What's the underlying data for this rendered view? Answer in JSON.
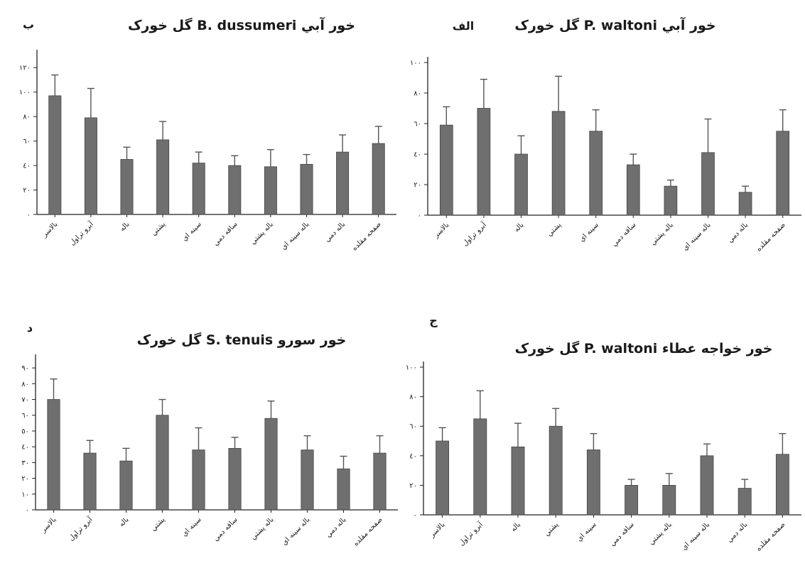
{
  "chart_data": [
    {
      "type": "bar",
      "panel": "panel-b",
      "letter": "ب",
      "title": "گل خورک B. dussumeri خور آبي",
      "categories": [
        "بالاسر",
        "آبرو تراول",
        "باله",
        "پشتي",
        "سينه اي",
        "ساقه دمي",
        "باله پشتي",
        "باله سينه اي",
        "باله دمي",
        "صفحه مقلده"
      ],
      "values": [
        97,
        79,
        45,
        61,
        42,
        40,
        39,
        41,
        51,
        58
      ],
      "errors": [
        17,
        24,
        10,
        15,
        9,
        8,
        14,
        8,
        14,
        14
      ],
      "ylim": [
        0,
        130
      ],
      "yticks": [
        0,
        20,
        40,
        60,
        80,
        100,
        120
      ],
      "ytick_labels": [
        "٠",
        "٢٠",
        "٤٠",
        "٦٠",
        "٨٠",
        "١٠٠",
        "١٢٠"
      ],
      "bar_color": "#6f6f6f",
      "grid": false
    },
    {
      "type": "bar",
      "panel": "panel-alef",
      "letter": "الف",
      "title": "گل خورک P. waltoni خور آبي",
      "categories": [
        "بالاسر",
        "آبرو تراول",
        "باله",
        "پشتي",
        "سينه اي",
        "ساقه دمي",
        "باله پشتي",
        "باله سينه اي",
        "باله دمي",
        "صفحه مقلده"
      ],
      "values": [
        59,
        70,
        40,
        68,
        55,
        33,
        19,
        41,
        15,
        55
      ],
      "errors": [
        12,
        19,
        12,
        23,
        14,
        7,
        4,
        22,
        4,
        14
      ],
      "ylim": [
        0,
        100
      ],
      "yticks": [
        0,
        20,
        40,
        60,
        80,
        100
      ],
      "ytick_labels": [
        "٠",
        "٢٠",
        "٤٠",
        "٦٠",
        "٨٠",
        "١٠٠"
      ],
      "bar_color": "#6f6f6f",
      "grid": false
    },
    {
      "type": "bar",
      "panel": "panel-dal",
      "letter": "د",
      "title": "گل خورک S. tenuis خور سورو",
      "categories": [
        "بالاسر",
        "آبرو تراول",
        "باله",
        "پشتي",
        "سينه اي",
        "ساقه دمي",
        "باله پشتي",
        "باله سينه اي",
        "باله دمي",
        "صفحه مقلده"
      ],
      "values": [
        70,
        36,
        31,
        60,
        38,
        39,
        58,
        38,
        26,
        36
      ],
      "errors": [
        13,
        8,
        8,
        10,
        14,
        7,
        11,
        9,
        8,
        11
      ],
      "ylim": [
        0,
        95
      ],
      "yticks": [
        0,
        10,
        20,
        30,
        40,
        50,
        60,
        70,
        80,
        90
      ],
      "ytick_labels": [
        "٠",
        "١٠",
        "٢٠",
        "٣٠",
        "٤٠",
        "٥٠",
        "٦٠",
        "٧٠",
        "٨٠",
        "٩٠"
      ],
      "bar_color": "#6f6f6f",
      "grid": false
    },
    {
      "type": "bar",
      "panel": "panel-jim",
      "letter": "ج",
      "title": "گل خورک P. waltoni خور خواجه عطاء",
      "categories": [
        "بالاسر",
        "آبرو تراول",
        "باله",
        "پشتي",
        "سينه اي",
        "ساقه دمي",
        "باله پشتي",
        "باله سينه اي",
        "باله دمي",
        "صفحه مقلده"
      ],
      "values": [
        50,
        65,
        46,
        60,
        44,
        20,
        20,
        40,
        18,
        41
      ],
      "errors": [
        9,
        19,
        16,
        12,
        11,
        4,
        8,
        8,
        6,
        14
      ],
      "ylim": [
        0,
        100
      ],
      "yticks": [
        0,
        20,
        40,
        60,
        80,
        100
      ],
      "ytick_labels": [
        "٠",
        "٢٠",
        "٤٠",
        "٦٠",
        "٨٠",
        "١٠٠"
      ],
      "bar_color": "#6f6f6f",
      "grid": false
    }
  ]
}
